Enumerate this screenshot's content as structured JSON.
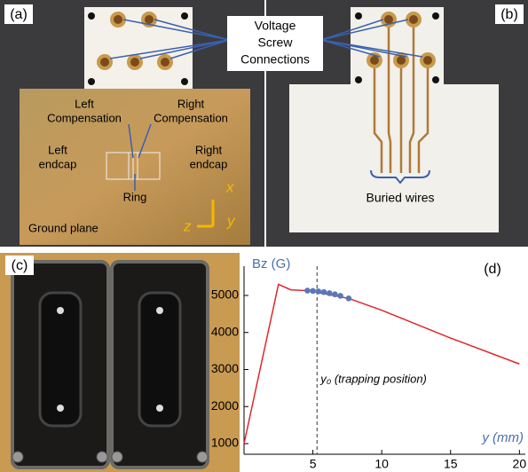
{
  "panels": {
    "a": {
      "label": "(a)",
      "left_comp": [
        "Left",
        "Compensation"
      ],
      "right_comp": [
        "Right",
        "Compensation"
      ],
      "left_endcap": [
        "Left",
        "endcap"
      ],
      "right_endcap": [
        "Right",
        "endcap"
      ],
      "ring": "Ring",
      "ground": "Ground plane",
      "axis_x": "x",
      "axis_y": "y",
      "axis_z": "z"
    },
    "voltage": [
      "Voltage",
      "Screw",
      "Connections"
    ],
    "b": {
      "label": "(b)",
      "wires": "Buried wires"
    },
    "c": {
      "label": "(c)"
    }
  },
  "chart_data": {
    "type": "line",
    "label": "(d)",
    "y_label": "Bz (G)",
    "x_label": "y (mm)",
    "annotation": "y₀ (trapping position)",
    "vline": 5.3,
    "series": [
      {
        "color": "#e0262b",
        "x": [
          0,
          2.5,
          3.4,
          4.6,
          7.6,
          10,
          15,
          20
        ],
        "values": [
          1000,
          5300,
          5150,
          5130,
          4920,
          4600,
          3850,
          3150
        ]
      },
      {
        "color": "#5a78b8",
        "marker": "circle",
        "x": [
          4.6,
          5.0,
          5.4,
          5.8,
          6.2,
          6.6,
          7.0,
          7.6
        ],
        "values": [
          5130,
          5120,
          5110,
          5090,
          5060,
          5030,
          4990,
          4920
        ]
      }
    ],
    "xlim": [
      0,
      20.3
    ],
    "ylim": [
      713,
      5790
    ],
    "xticks": [
      5,
      10,
      15,
      20
    ],
    "yticks": [
      1000,
      2000,
      3000,
      4000,
      5000
    ]
  }
}
